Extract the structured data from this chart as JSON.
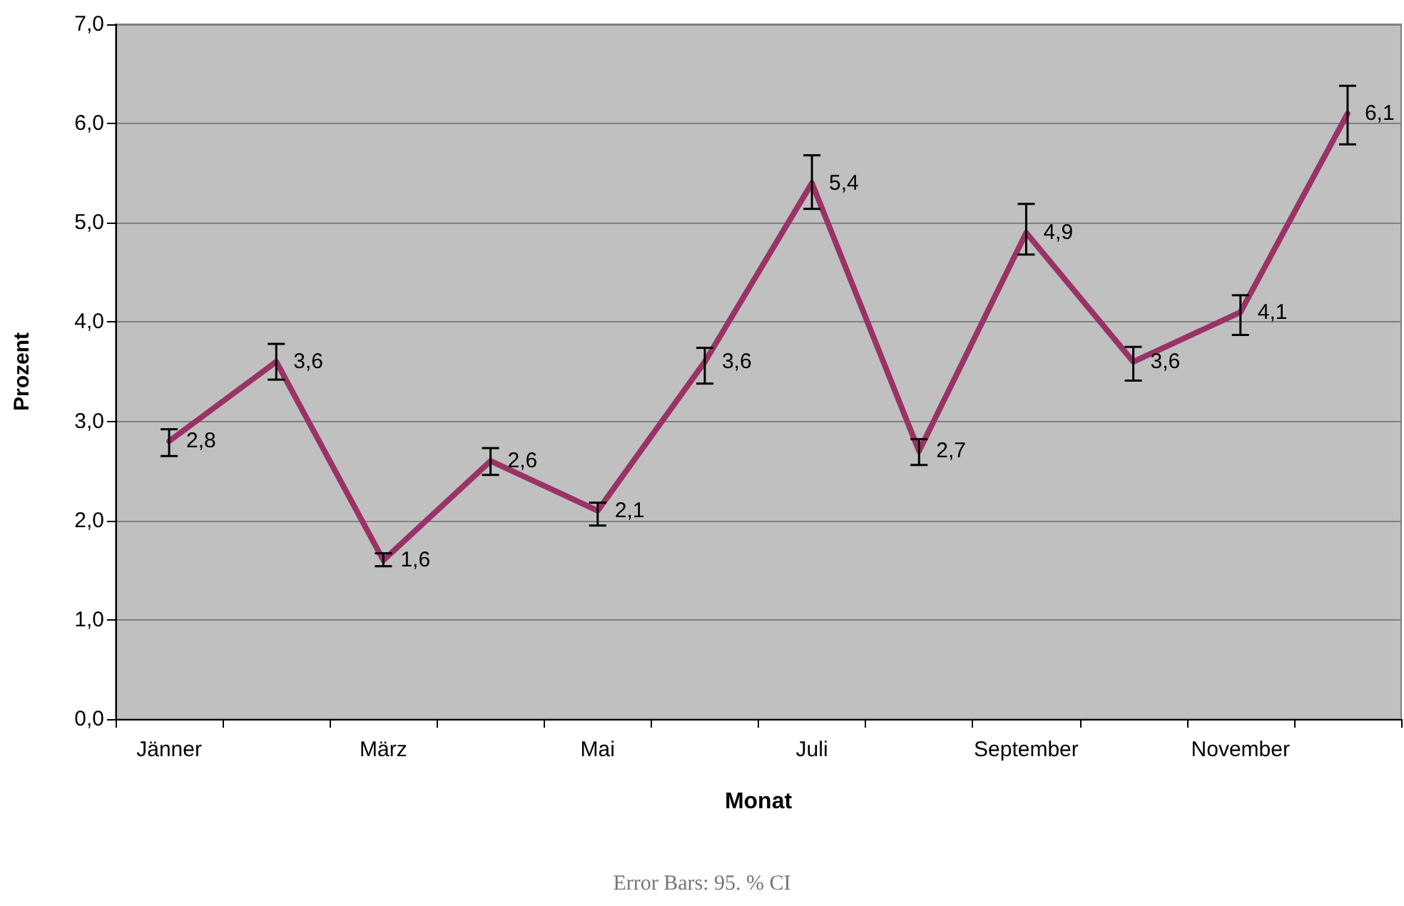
{
  "chart_data": {
    "type": "line",
    "xlabel": "Monat",
    "ylabel": "Prozent",
    "categories": [
      "Jänner",
      null,
      "März",
      null,
      "Mai",
      null,
      "Juli",
      null,
      "September",
      null,
      "November",
      null
    ],
    "series": [
      {
        "color": "#993366",
        "values": [
          2.8,
          3.6,
          1.6,
          2.6,
          2.1,
          3.6,
          5.4,
          2.7,
          4.9,
          3.6,
          4.1,
          6.1
        ],
        "value_labels": [
          "2,8",
          "3,6",
          "1,6",
          "2,6",
          "2,1",
          "3,6",
          "5,4",
          "2,7",
          "4,9",
          "3,6",
          "4,1",
          "6,1"
        ],
        "errors": [
          [
            2.65,
            2.92
          ],
          [
            3.42,
            3.78
          ],
          [
            1.54,
            1.67
          ],
          [
            2.46,
            2.73
          ],
          [
            1.95,
            2.18
          ],
          [
            3.38,
            3.74
          ],
          [
            5.14,
            5.68
          ],
          [
            2.56,
            2.82
          ],
          [
            4.68,
            5.19
          ],
          [
            3.41,
            3.75
          ],
          [
            3.87,
            4.27
          ],
          [
            5.79,
            6.38
          ]
        ]
      }
    ],
    "ylim": [
      0,
      7
    ],
    "yticks": [
      {
        "value": 0,
        "label": "0,0"
      },
      {
        "value": 1,
        "label": "1,0"
      },
      {
        "value": 2,
        "label": "2,0"
      },
      {
        "value": 3,
        "label": "3,0"
      },
      {
        "value": 4,
        "label": "4,0"
      },
      {
        "value": 5,
        "label": "5,0"
      },
      {
        "value": 6,
        "label": "6,0"
      },
      {
        "value": 7,
        "label": "7,0"
      }
    ],
    "grid": "y",
    "marker": "none",
    "line_style": "solid",
    "annotations": [
      "Error Bars: 95. % CI"
    ]
  }
}
